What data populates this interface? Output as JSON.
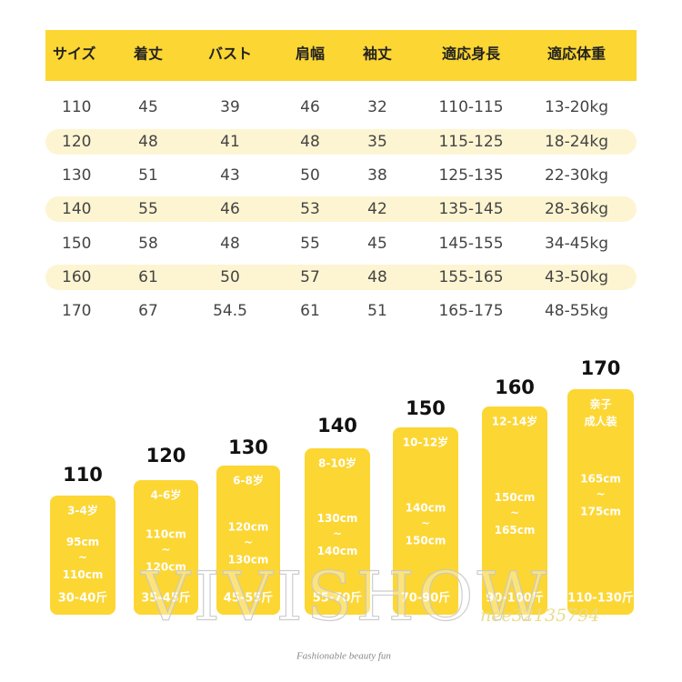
{
  "table": {
    "header": [
      "サイズ",
      "着丈",
      "バスト",
      "肩幅",
      "袖丈",
      "適応身長",
      "適応体重"
    ],
    "rows": [
      [
        "110",
        "45",
        "39",
        "46",
        "32",
        "110-115",
        "13-20kg"
      ],
      [
        "120",
        "48",
        "41",
        "48",
        "35",
        "115-125",
        "18-24kg"
      ],
      [
        "130",
        "51",
        "43",
        "50",
        "38",
        "125-135",
        "22-30kg"
      ],
      [
        "140",
        "55",
        "46",
        "53",
        "42",
        "135-145",
        "28-36kg"
      ],
      [
        "150",
        "58",
        "48",
        "55",
        "45",
        "145-155",
        "34-45kg"
      ],
      [
        "160",
        "61",
        "50",
        "57",
        "48",
        "155-165",
        "43-50kg"
      ],
      [
        "170",
        "67",
        "54.5",
        "61",
        "51",
        "165-175",
        "48-55kg"
      ]
    ]
  },
  "cards": {
    "separator": "~",
    "items": [
      {
        "size": "110",
        "age": [
          "3-4岁"
        ],
        "height_from": "95cm",
        "height_to": "110cm",
        "weight": "30-40斤"
      },
      {
        "size": "120",
        "age": [
          "4-6岁"
        ],
        "height_from": "110cm",
        "height_to": "120cm",
        "weight": "35-45斤"
      },
      {
        "size": "130",
        "age": [
          "6-8岁"
        ],
        "height_from": "120cm",
        "height_to": "130cm",
        "weight": "45-55斤"
      },
      {
        "size": "140",
        "age": [
          "8-10岁"
        ],
        "height_from": "130cm",
        "height_to": "140cm",
        "weight": "55-70斤"
      },
      {
        "size": "150",
        "age": [
          "10-12岁"
        ],
        "height_from": "140cm",
        "height_to": "150cm",
        "weight": "70-90斤"
      },
      {
        "size": "160",
        "age": [
          "12-14岁"
        ],
        "height_from": "150cm",
        "height_to": "165cm",
        "weight": "90-100斤"
      },
      {
        "size": "170",
        "age": [
          "亲子",
          "成人装"
        ],
        "height_from": "165cm",
        "height_to": "175cm",
        "weight": "110-130斤"
      }
    ]
  },
  "watermark": {
    "brand": "VIVISHOW",
    "id": "nee32135794",
    "tagline": "Fashionable beauty fun"
  }
}
